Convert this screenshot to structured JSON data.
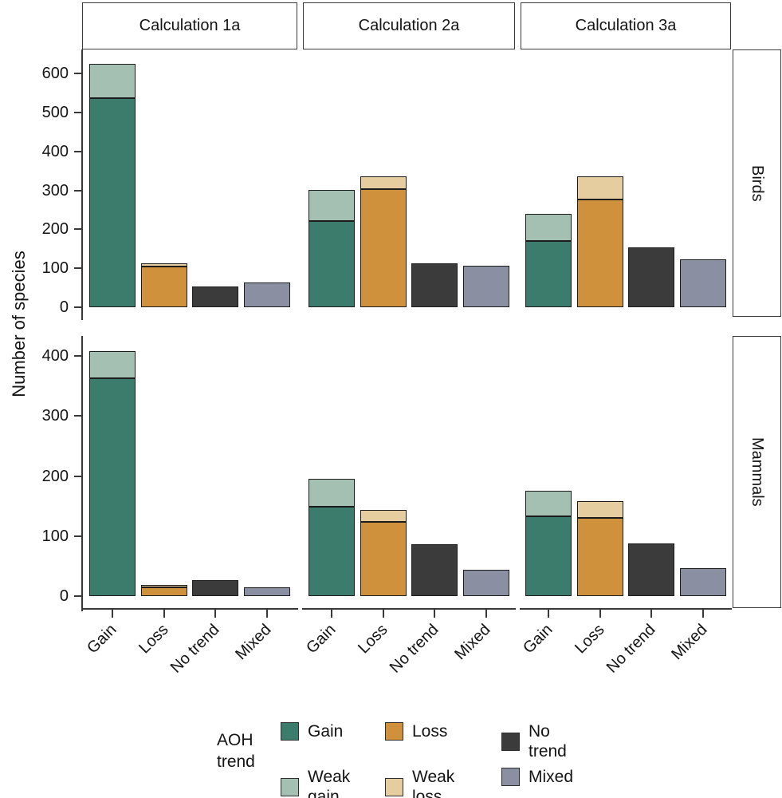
{
  "figure": {
    "ylabel": "Number of species",
    "facet_columns": [
      "Calculation 1a",
      "Calculation 2a",
      "Calculation 3a"
    ],
    "facet_rows": [
      "Birds",
      "Mammals"
    ]
  },
  "legend": {
    "title": "AOH\ntrend",
    "position": "bottom",
    "items": [
      {
        "name": "Gain",
        "label": "Gain",
        "color": "#3c7c6d"
      },
      {
        "name": "Weak gain",
        "label": "Weak\ngain",
        "color": "#a3c0b3"
      },
      {
        "name": "Loss",
        "label": "Loss",
        "color": "#cf913c"
      },
      {
        "name": "Weak loss",
        "label": "Weak\nloss",
        "color": "#e6cda0"
      },
      {
        "name": "No trend",
        "label": "No\ntrend",
        "color": "#3b3b3b"
      },
      {
        "name": "Mixed",
        "label": "Mixed",
        "color": "#8a90a2"
      }
    ]
  },
  "chart_data": {
    "type": "bar",
    "stacked": true,
    "title": "",
    "xlabel": "",
    "ylabel": "Number of species",
    "grid": false,
    "legend_position": "bottom",
    "legend_title": "AOH trend",
    "categories": [
      "Gain",
      "Loss",
      "No trend",
      "Mixed"
    ],
    "series_names": [
      "Gain",
      "Weak gain",
      "Loss",
      "Weak loss",
      "No trend",
      "Mixed"
    ],
    "facet_rows": [
      {
        "label": "Birds",
        "ylim": [
          0,
          660
        ],
        "yticks": [
          0,
          100,
          200,
          300,
          400,
          500,
          600
        ],
        "panels": [
          {
            "column": "Calculation 1a",
            "bars": [
              {
                "category": "Gain",
                "segments": [
                  {
                    "series": "Gain",
                    "value": 537
                  },
                  {
                    "series": "Weak gain",
                    "value": 88
                  }
                ],
                "total": 625
              },
              {
                "category": "Loss",
                "segments": [
                  {
                    "series": "Loss",
                    "value": 104
                  },
                  {
                    "series": "Weak loss",
                    "value": 9
                  }
                ],
                "total": 113
              },
              {
                "category": "No trend",
                "segments": [
                  {
                    "series": "No trend",
                    "value": 53
                  }
                ],
                "total": 53
              },
              {
                "category": "Mixed",
                "segments": [
                  {
                    "series": "Mixed",
                    "value": 64
                  }
                ],
                "total": 64
              }
            ]
          },
          {
            "column": "Calculation 2a",
            "bars": [
              {
                "category": "Gain",
                "segments": [
                  {
                    "series": "Gain",
                    "value": 222
                  },
                  {
                    "series": "Weak gain",
                    "value": 79
                  }
                ],
                "total": 301
              },
              {
                "category": "Loss",
                "segments": [
                  {
                    "series": "Loss",
                    "value": 303
                  },
                  {
                    "series": "Weak loss",
                    "value": 33
                  }
                ],
                "total": 336
              },
              {
                "category": "No trend",
                "segments": [
                  {
                    "series": "No trend",
                    "value": 113
                  }
                ],
                "total": 113
              },
              {
                "category": "Mixed",
                "segments": [
                  {
                    "series": "Mixed",
                    "value": 107
                  }
                ],
                "total": 107
              }
            ]
          },
          {
            "column": "Calculation 3a",
            "bars": [
              {
                "category": "Gain",
                "segments": [
                  {
                    "series": "Gain",
                    "value": 170
                  },
                  {
                    "series": "Weak gain",
                    "value": 70
                  }
                ],
                "total": 240
              },
              {
                "category": "Loss",
                "segments": [
                  {
                    "series": "Loss",
                    "value": 276
                  },
                  {
                    "series": "Weak loss",
                    "value": 60
                  }
                ],
                "total": 336
              },
              {
                "category": "No trend",
                "segments": [
                  {
                    "series": "No trend",
                    "value": 154
                  }
                ],
                "total": 154
              },
              {
                "category": "Mixed",
                "segments": [
                  {
                    "series": "Mixed",
                    "value": 123
                  }
                ],
                "total": 123
              }
            ]
          }
        ]
      },
      {
        "label": "Mammals",
        "ylim": [
          0,
          430
        ],
        "yticks": [
          0,
          100,
          200,
          300,
          400
        ],
        "panels": [
          {
            "column": "Calculation 1a",
            "bars": [
              {
                "category": "Gain",
                "segments": [
                  {
                    "series": "Gain",
                    "value": 363
                  },
                  {
                    "series": "Weak gain",
                    "value": 45
                  }
                ],
                "total": 408
              },
              {
                "category": "Loss",
                "segments": [
                  {
                    "series": "Loss",
                    "value": 14
                  },
                  {
                    "series": "Weak loss",
                    "value": 5
                  }
                ],
                "total": 19
              },
              {
                "category": "No trend",
                "segments": [
                  {
                    "series": "No trend",
                    "value": 26
                  }
                ],
                "total": 26
              },
              {
                "category": "Mixed",
                "segments": [
                  {
                    "series": "Mixed",
                    "value": 14
                  }
                ],
                "total": 14
              }
            ]
          },
          {
            "column": "Calculation 2a",
            "bars": [
              {
                "category": "Gain",
                "segments": [
                  {
                    "series": "Gain",
                    "value": 149
                  },
                  {
                    "series": "Weak gain",
                    "value": 47
                  }
                ],
                "total": 196
              },
              {
                "category": "Loss",
                "segments": [
                  {
                    "series": "Loss",
                    "value": 124
                  },
                  {
                    "series": "Weak loss",
                    "value": 20
                  }
                ],
                "total": 144
              },
              {
                "category": "No trend",
                "segments": [
                  {
                    "series": "No trend",
                    "value": 86
                  }
                ],
                "total": 86
              },
              {
                "category": "Mixed",
                "segments": [
                  {
                    "series": "Mixed",
                    "value": 44
                  }
                ],
                "total": 44
              }
            ]
          },
          {
            "column": "Calculation 3a",
            "bars": [
              {
                "category": "Gain",
                "segments": [
                  {
                    "series": "Gain",
                    "value": 133
                  },
                  {
                    "series": "Weak gain",
                    "value": 43
                  }
                ],
                "total": 176
              },
              {
                "category": "Loss",
                "segments": [
                  {
                    "series": "Loss",
                    "value": 130
                  },
                  {
                    "series": "Weak loss",
                    "value": 28
                  }
                ],
                "total": 158
              },
              {
                "category": "No trend",
                "segments": [
                  {
                    "series": "No trend",
                    "value": 88
                  }
                ],
                "total": 88
              },
              {
                "category": "Mixed",
                "segments": [
                  {
                    "series": "Mixed",
                    "value": 47
                  }
                ],
                "total": 47
              }
            ]
          }
        ]
      }
    ]
  }
}
